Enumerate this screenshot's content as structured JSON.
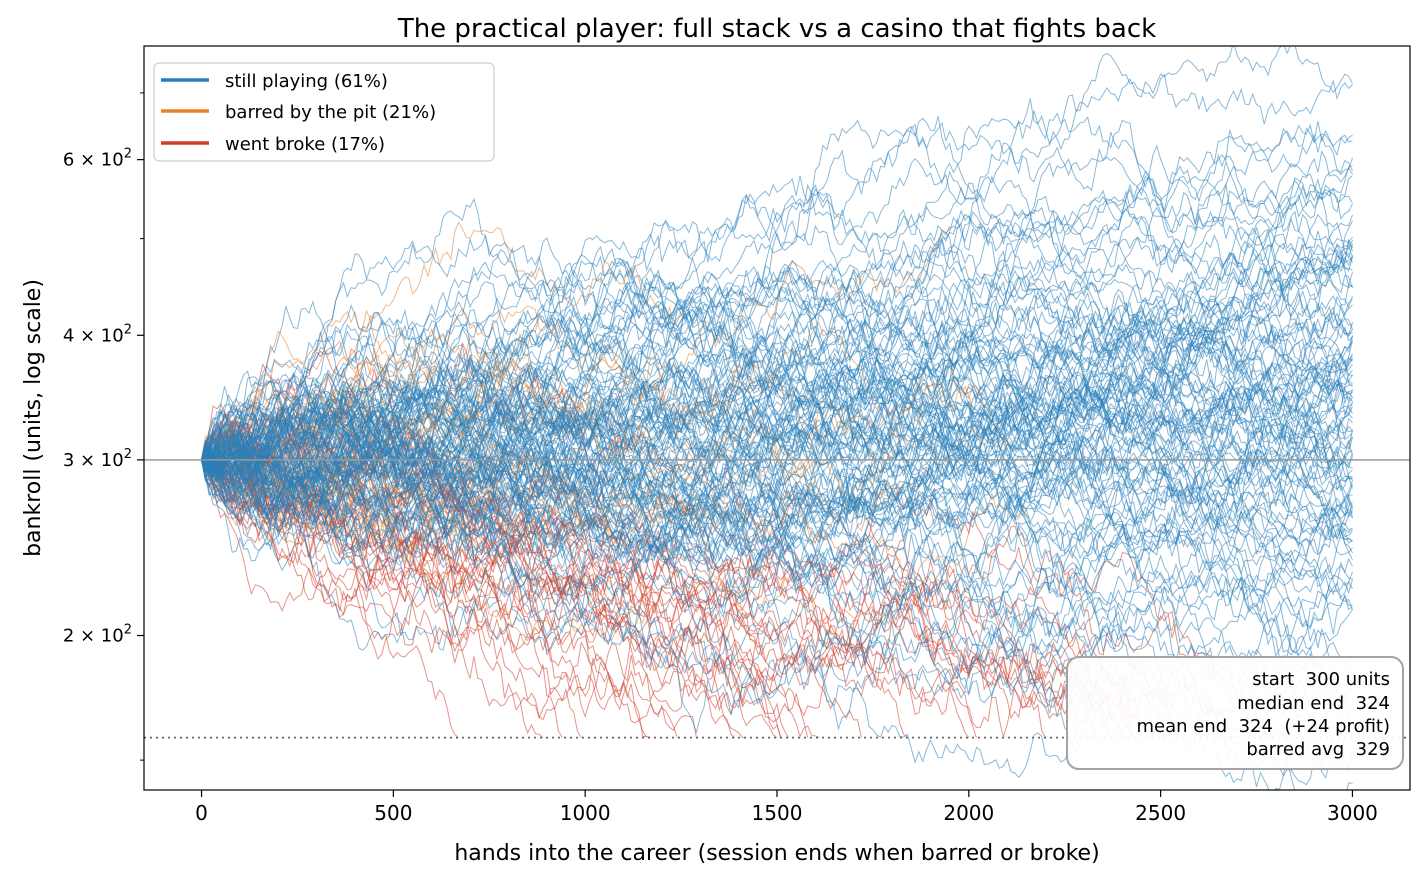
{
  "chart_data": {
    "type": "line",
    "title": "The practical player: full stack vs a casino that fights back",
    "xlabel": "hands into the career (session ends when barred or broke)",
    "ylabel": "bankroll (units, log scale)",
    "xlim": [
      -150,
      3150
    ],
    "ylim": [
      140,
      780
    ],
    "y_scale": "log",
    "grid": false,
    "x_ticks": [
      0,
      500,
      1000,
      1500,
      2000,
      2500,
      3000
    ],
    "x_tick_labels": [
      "0",
      "500",
      "1000",
      "1500",
      "2000",
      "2500",
      "3000"
    ],
    "y_major_ticks": [
      200,
      300,
      400,
      600
    ],
    "y_tick_labels": [
      {
        "mantissa": "2",
        "exponent": "2"
      },
      {
        "mantissa": "3",
        "exponent": "2"
      },
      {
        "mantissa": "4",
        "exponent": "2"
      },
      {
        "mantissa": "6",
        "exponent": "2"
      }
    ],
    "y_tick_base_symbol": "× 10",
    "y_minor_ticks": [
      150,
      500,
      700
    ],
    "start_value": 300,
    "broke_threshold": 158,
    "reference_lines": [
      {
        "kind": "start",
        "y": 300,
        "style": "solid",
        "color": "#999999"
      },
      {
        "kind": "broke",
        "y": 158,
        "style": "dotted",
        "color": "#666666"
      }
    ],
    "series": [
      {
        "name": "still playing (61%)",
        "color": "#2a7fba",
        "count": 122,
        "end_hand": 3000
      },
      {
        "name": "barred by the pit (21%)",
        "color": "#e8802a",
        "count": 42
      },
      {
        "name": "went broke (17%)",
        "color": "#cd3e2b",
        "count": 34
      }
    ],
    "legend_position": "upper-left",
    "stats_box": {
      "position": "lower-right",
      "lines": [
        "start  300 units",
        "median end  324",
        "mean end  324  (+24 profit)",
        "barred avg  329"
      ]
    }
  }
}
